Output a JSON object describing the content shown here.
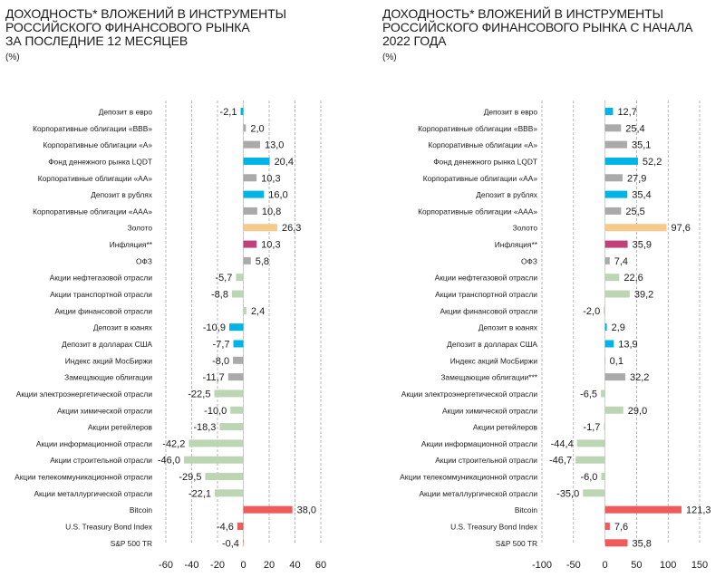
{
  "colors": {
    "blue": "#00b4e6",
    "gray": "#aaaaaa",
    "gold": "#f7c98b",
    "magenta": "#c0407a",
    "green": "#bcd6b4",
    "red": "#f05a5a",
    "grid": "#888888"
  },
  "chart_data": [
    {
      "type": "bar",
      "orientation": "horizontal",
      "title": "ДОХОДНОСТЬ* ВЛОЖЕНИЙ В ИНСТРУМЕНТЫ\nРОССИЙСКОГО ФИНАНСОВОГО РЫНКА\nЗА ПОСЛЕДНИЕ 12 МЕСЯЦЕВ",
      "unit": "(%)",
      "xlim": [
        -60,
        60
      ],
      "xticks": [
        -60,
        -40,
        -20,
        0,
        20,
        40,
        60
      ],
      "grid": true,
      "categories": [
        "Депозит в евро",
        "Корпоративные облигации «BBB»",
        "Корпоративные облигации «A»",
        "Фонд денежного рынка LQDT",
        "Корпоративные облигации «AA»",
        "Депозит в рублях",
        "Корпоративные облигации «AAA»",
        "Золото",
        "Инфляция**",
        "ОФЗ",
        "Акции нефтегазовой отрасли",
        "Акции транспортной отрасли",
        "Акции финансовой отрасли",
        "Депозит в юанях",
        "Депозит в долларах США",
        "Индекс акций МосБиржи",
        "Замещающие облигации",
        "Акции электроэнергетической отрасли",
        "Акции химической отрасли",
        "Акции ретейлеров",
        "Акции информационной отрасли",
        "Акции строительной отрасли",
        "Акции телекоммуникационной отрасли",
        "Акции металлургической отрасли",
        "Bitcoin",
        "U.S. Treasury Bond Index",
        "S&P 500 TR"
      ],
      "values": [
        -2.1,
        2.0,
        13.0,
        20.4,
        10.3,
        16.0,
        10.8,
        26.3,
        10.3,
        5.8,
        -5.7,
        -8.8,
        2.4,
        -10.9,
        -7.7,
        -8.0,
        -11.7,
        -22.5,
        -10.0,
        -18.3,
        -42.2,
        -46.0,
        -29.5,
        -22.1,
        38.0,
        -4.6,
        -0.4
      ],
      "labels": [
        "-2,1",
        "2,0",
        "13,0",
        "20,4",
        "10,3",
        "16,0",
        "10,8",
        "26,3",
        "10,3",
        "5,8",
        "-5,7",
        "-8,8",
        "2,4",
        "-10,9",
        "-7,7",
        "-8,0",
        "-11,7",
        "-22,5",
        "-10,0",
        "-18,3",
        "-42,2",
        "-46,0",
        "-29,5",
        "-22,1",
        "38,0",
        "-4,6",
        "-0,4"
      ],
      "colors": [
        "blue",
        "gray",
        "gray",
        "blue",
        "gray",
        "blue",
        "gray",
        "gold",
        "magenta",
        "gray",
        "green",
        "green",
        "green",
        "blue",
        "blue",
        "gray",
        "gray",
        "green",
        "green",
        "green",
        "green",
        "green",
        "green",
        "green",
        "red",
        "red",
        "red"
      ]
    },
    {
      "type": "bar",
      "orientation": "horizontal",
      "title": "ДОХОДНОСТЬ* ВЛОЖЕНИЙ В ИНСТРУМЕНТЫ\nРОССИЙСКОГО ФИНАНСОВОГО РЫНКА С НАЧАЛА\n2022 ГОДА",
      "unit": "(%)",
      "xlim": [
        -100,
        150
      ],
      "xticks": [
        -100,
        -50,
        0,
        50,
        100,
        150
      ],
      "grid": true,
      "categories": [
        "Депозит в евро",
        "Корпоративные облигации «BBB»",
        "Корпоративные облигации «A»",
        "Фонд денежного рынка LQDT",
        "Корпоративные облигации «AA»",
        "Депозит в рублях",
        "Корпоративные облигации «AAA»",
        "Золото",
        "Инфляция**",
        "ОФЗ",
        "Акции нефтегазовой отрасли",
        "Акции транспортной отрасли",
        "Акции финансовой отрасли",
        "Депозит в юанях",
        "Депозит в долларах США",
        "Индекс акций МосБиржи",
        "Замещающие облигации***",
        "Акции электроэнергетической отрасли",
        "Акции химической отрасли",
        "Акции ретейлеров",
        "Акции информационной отрасли",
        "Акции строительной отрасли",
        "Акции телекоммуникационной отрасли",
        "Акции металлургической отрасли",
        "Bitcoin",
        "U.S. Treasury Bond Index",
        "S&P 500 TR"
      ],
      "values": [
        12.7,
        25.4,
        35.1,
        52.2,
        27.9,
        35.4,
        25.5,
        97.6,
        35.9,
        7.4,
        22.6,
        39.2,
        -2.0,
        2.9,
        13.9,
        0.1,
        32.2,
        -6.5,
        29.0,
        -1.7,
        -44.4,
        -46.7,
        -6.0,
        -35.0,
        121.3,
        7.6,
        35.8
      ],
      "labels": [
        "12,7",
        "25,4",
        "35,1",
        "52,2",
        "27,9",
        "35,4",
        "25,5",
        "97,6",
        "35,9",
        "7,4",
        "22,6",
        "39,2",
        "-2,0",
        "2,9",
        "13,9",
        "0,1",
        "32,2",
        "-6,5",
        "29,0",
        "-1,7",
        "-44,4",
        "-46,7",
        "-6,0",
        "-35,0",
        "121,3",
        "7,6",
        "35,8"
      ],
      "colors": [
        "blue",
        "gray",
        "gray",
        "blue",
        "gray",
        "blue",
        "gray",
        "gold",
        "magenta",
        "gray",
        "green",
        "green",
        "green",
        "blue",
        "blue",
        "gray",
        "gray",
        "green",
        "green",
        "green",
        "green",
        "green",
        "green",
        "green",
        "red",
        "red",
        "red"
      ]
    }
  ]
}
